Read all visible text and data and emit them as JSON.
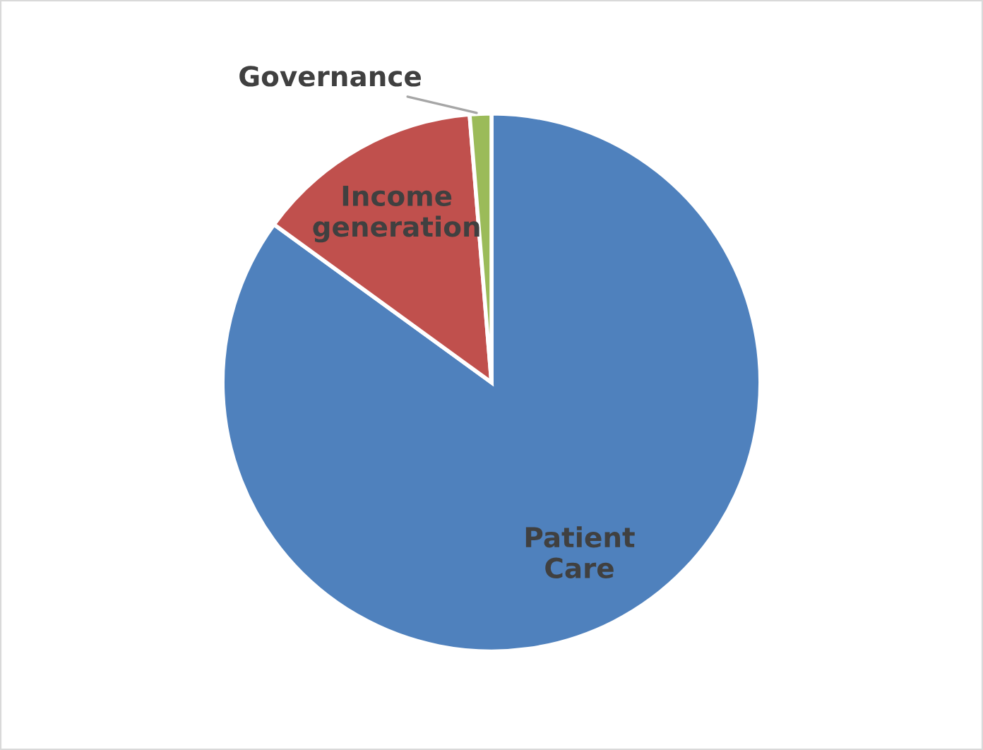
{
  "chart_data": {
    "type": "pie",
    "categories": [
      "Patient Care",
      "Income generation",
      "Governance"
    ],
    "values": [
      85,
      13.7,
      1.3
    ],
    "colors": [
      "#4f81bd",
      "#c0504d",
      "#9bbb59"
    ]
  }
}
